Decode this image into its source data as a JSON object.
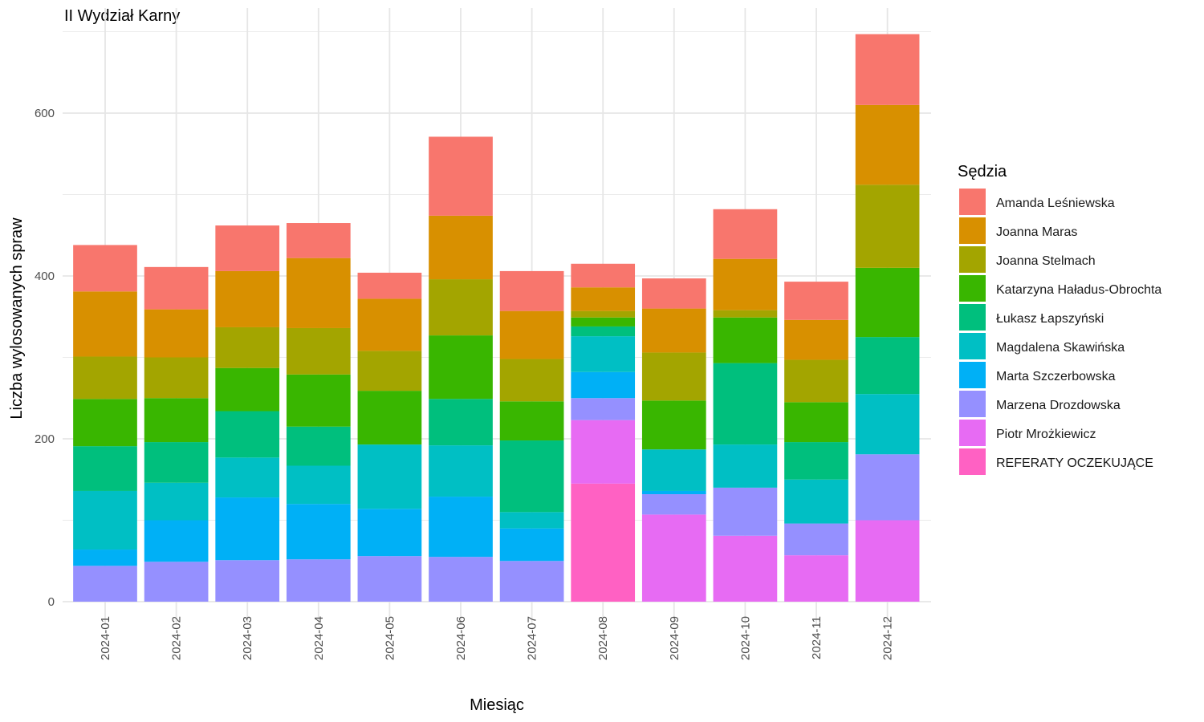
{
  "chart_data": {
    "type": "bar",
    "stacked": true,
    "title": "II Wydział Karny",
    "xlabel": "Miesiąc",
    "ylabel": "Liczba wylosowanych spraw",
    "ylim": [
      0,
      700
    ],
    "yticks": [
      0,
      200,
      400,
      600
    ],
    "grid": true,
    "legend_title": "Sędzia",
    "legend_position": "right",
    "categories": [
      "2024-01",
      "2024-02",
      "2024-03",
      "2024-04",
      "2024-05",
      "2024-06",
      "2024-07",
      "2024-08",
      "2024-09",
      "2024-10",
      "2024-11",
      "2024-12"
    ],
    "series": [
      {
        "name": "REFERATY OCZEKUJĄCE",
        "color": "#FF61C3",
        "values": [
          0,
          0,
          0,
          0,
          0,
          0,
          0,
          145,
          0,
          0,
          0,
          0
        ]
      },
      {
        "name": "Piotr Mrożkiewicz",
        "color": "#E76BF3",
        "values": [
          0,
          0,
          0,
          0,
          0,
          0,
          0,
          78,
          107,
          81,
          57,
          100
        ]
      },
      {
        "name": "Marzena Drozdowska",
        "color": "#9590FF",
        "values": [
          44,
          49,
          51,
          52,
          56,
          55,
          50,
          27,
          25,
          59,
          39,
          81
        ]
      },
      {
        "name": "Marta Szczerbowska",
        "color": "#00B0F6",
        "values": [
          20,
          51,
          77,
          68,
          58,
          74,
          40,
          32,
          4,
          0,
          0,
          0
        ]
      },
      {
        "name": "Magdalena Skawińska",
        "color": "#00BFC4",
        "values": [
          72,
          46,
          49,
          47,
          79,
          63,
          20,
          44,
          51,
          53,
          54,
          74
        ]
      },
      {
        "name": "Łukasz Łapszyński",
        "color": "#00BF7D",
        "values": [
          55,
          50,
          57,
          48,
          0,
          57,
          88,
          12,
          0,
          100,
          46,
          70
        ]
      },
      {
        "name": "Katarzyna Haładus-Obrochta",
        "color": "#39B600",
        "values": [
          58,
          54,
          53,
          64,
          66,
          78,
          48,
          11,
          60,
          56,
          49,
          85
        ]
      },
      {
        "name": "Joanna Stelmach",
        "color": "#A3A500",
        "values": [
          52,
          50,
          50,
          57,
          49,
          69,
          52,
          8,
          59,
          9,
          52,
          102
        ]
      },
      {
        "name": "Joanna Maras",
        "color": "#D89000",
        "values": [
          80,
          59,
          69,
          86,
          64,
          78,
          59,
          29,
          54,
          63,
          49,
          98
        ]
      },
      {
        "name": "Amanda Leśniewska",
        "color": "#F8766D",
        "values": [
          57,
          52,
          56,
          43,
          32,
          97,
          49,
          29,
          37,
          61,
          47,
          87
        ]
      }
    ]
  }
}
